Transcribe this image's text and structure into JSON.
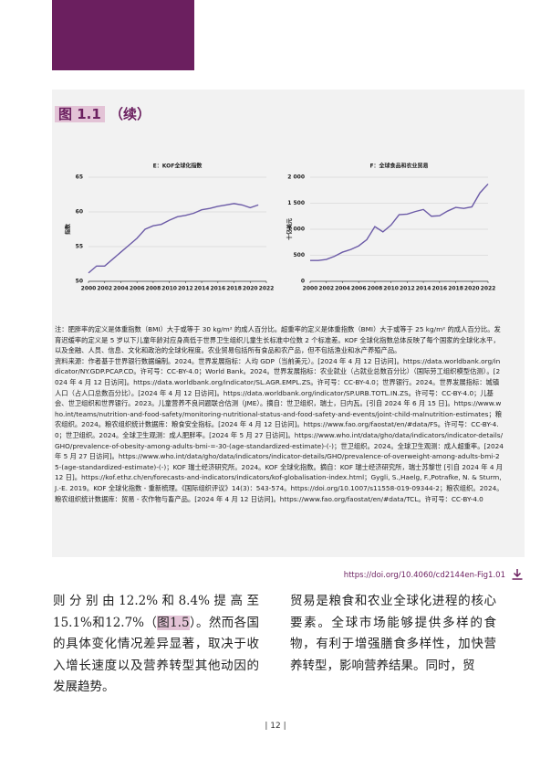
{
  "figure": {
    "label": "图 1.1",
    "suffix": "（续）"
  },
  "chart_data": [
    {
      "type": "line",
      "title": "E：KOF全球化指数",
      "ylabel": "指数",
      "x": [
        2000,
        2001,
        2002,
        2003,
        2004,
        2005,
        2006,
        2007,
        2008,
        2009,
        2010,
        2011,
        2012,
        2013,
        2014,
        2015,
        2016,
        2017,
        2018,
        2019,
        2020,
        2021
      ],
      "series": [
        {
          "name": "KOF全球化指数",
          "color": "#6c5ba7",
          "values": [
            51.2,
            52.2,
            52.2,
            53.2,
            54.2,
            55.2,
            56.2,
            57.5,
            58.0,
            58.2,
            58.8,
            59.3,
            59.5,
            59.8,
            60.3,
            60.5,
            60.8,
            61.0,
            61.2,
            61.0,
            60.6,
            61.0
          ]
        }
      ],
      "xlim": [
        2000,
        2022
      ],
      "xticks": [
        2000,
        2002,
        2004,
        2006,
        2008,
        2010,
        2012,
        2014,
        2016,
        2018,
        2020,
        2022
      ],
      "ylim": [
        50,
        65
      ],
      "yticks": [
        50,
        55,
        60,
        65
      ],
      "grid": true
    },
    {
      "type": "line",
      "title": "F：全球食品和农业贸易",
      "ylabel": "十亿美元",
      "x": [
        2000,
        2001,
        2002,
        2003,
        2004,
        2005,
        2006,
        2007,
        2008,
        2009,
        2010,
        2011,
        2012,
        2013,
        2014,
        2015,
        2016,
        2017,
        2018,
        2019,
        2020,
        2021,
        2022
      ],
      "series": [
        {
          "name": "全球食品和农业贸易",
          "color": "#6c5ba7",
          "values": [
            400,
            400,
            420,
            480,
            560,
            610,
            680,
            800,
            1050,
            950,
            1080,
            1280,
            1290,
            1340,
            1380,
            1250,
            1260,
            1350,
            1420,
            1400,
            1430,
            1700,
            1870
          ]
        }
      ],
      "xlim": [
        2000,
        2022
      ],
      "xticks": [
        2000,
        2002,
        2004,
        2006,
        2008,
        2010,
        2012,
        2014,
        2016,
        2018,
        2020,
        2022
      ],
      "ylim": [
        0,
        2000
      ],
      "yticks": [
        0,
        500,
        {
          "value": 1000,
          "label": "1 000"
        },
        {
          "value": 1500,
          "label": "1 500"
        },
        {
          "value": 2000,
          "label": "2 000"
        }
      ],
      "grid": true
    }
  ],
  "notes": [
    "注：肥胖率的定义是体重指数（BMI）大于或等于 30 kg/m² 的成人百分比。超重率的定义是体重指数（BMI）大于或等于 25 kg/m² 的成人百分比。发育迟缓率的定义是 5 岁以下儿童年龄对应身高低于世界卫生组织儿童生长标准中位数 2 个标准差。KOF 全球化指数总体反映了每个国家的全球化水平，以及金融、人员、信息、文化和政治的全球化程度。农业贸易包括所有食品和农产品，但不包括渔业和水产养殖产品。",
    "资料来源：作者基于世界银行数据编制。2024。世界发展指标：人均 GDP（当前美元）。[2024 年 4 月 12 日访问]。https://data.worldbank.org/indicator/NY.GDP.PCAP.CD。许可号：CC-BY-4.0；World Bank。2024。世界发展指标：农业就业（占就业总数百分比）（国际劳工组织模型估测）。[2024 年 4 月 12 日访问]。https://data.worldbank.org/indicator/SL.AGR.EMPL.ZS。许可号：CC-BY-4.0；世界银行。2024。世界发展指标：城镇人口（占人口总数百分比）。[2024 年 4 月 12 日访问]。https://data.worldbank.org/indicator/SP.URB.TOTL.IN.ZS。许可号：CC-BY-4.0；儿基会、世卫组织和世界银行。2023。儿童营养不良问题联合估测（JME）。摘自：世卫组织，瑞士，日内瓦。[引自 2024 年 6 月 15 日]。https://www.who.int/teams/nutrition-and-food-safety/monitoring-nutritional-status-and-food-safety-and-events/joint-child-malnutrition-estimates；粮农组织。2024。粮农组织统计数据库：粮食安全指标。[2024 年 4 月 12 日访问]。https://www.fao.org/faostat/en/#data/FS。许可号：CC-BY-4.0；世卫组织。2024。全球卫生观测：成人肥胖率。[2024 年 5 月 27 日访问]。https://www.who.int/data/gho/data/indicators/indicator-details/GHO/prevalence-of-obesity-among-adults-bmi-=-30-(age-standardized-estimate)-(-)；世卫组织。2024。全球卫生观测：成人超重率。[2024 年 5 月 27 日访问]。https://www.who.int/data/gho/data/indicators/indicator-details/GHO/prevalence-of-overweight-among-adults-bmi-25-(age-standardized-estimate)-(-)；KOF 瑞士经济研究所。2024。KOF 全球化指数。摘自：KOF 瑞士经济研究所，瑞士苏黎世 [引自 2024 年 4 月 12 日]。https://kof.ethz.ch/en/forecasts-and-indicators/indicators/kof-globalisation-index.html；Gygli, S.,Haelg, F.,Potrafke, N. & Sturm, J.-E. 2019。KOF 全球化指数 - 重新梳理。《国际组织评议》14(3)：543-574。https://doi.org/10.1007/s11558-019-09344-2；粮农组织。2024。粮农组织统计数据库：贸易 - 农作物与畜产品。[2024 年 4 月 12 日访问]。https://www.fao.org/faostat/en/#data/TCL。许可号：CC-BY-4.0"
  ],
  "link": "https://doi.org/10.4060/cd2144en-Fig1.01",
  "body": {
    "left": [
      "则分别由12.2%和8.4%提高至15.1%和12.7%（",
      "图1.5",
      "）。然而各国的具体变化情况差异显著，取决于收入增长速度以及营养转型其他动因的发展趋势。"
    ],
    "right": "贸易是粮食和农业全球化进程的核心要素。全球市场能够提供多样的食物，有利于增强膳食多样性，加快营养转型，影响营养结果。同时，贸"
  },
  "page_number": "| 12 |"
}
